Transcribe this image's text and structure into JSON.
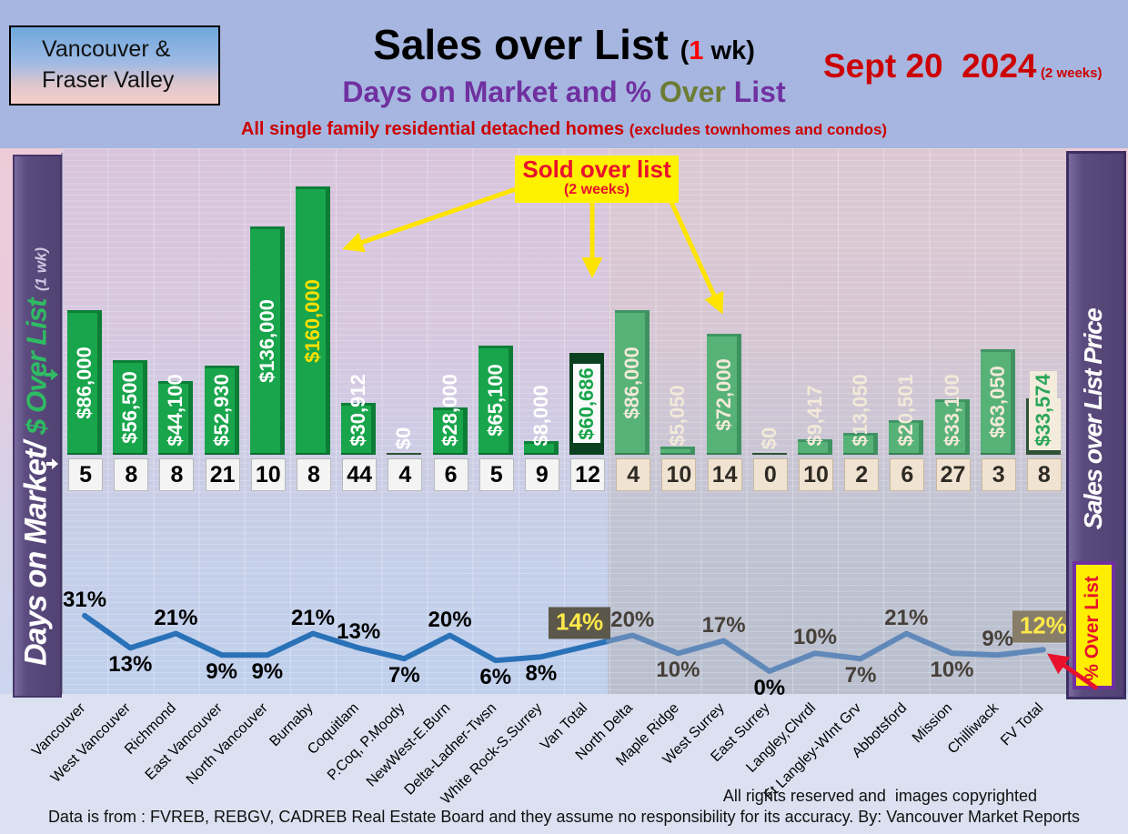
{
  "header": {
    "region_box": [
      "Vancouver &",
      "Fraser Valley"
    ],
    "title": "Sales over List",
    "title_paren_open": "(",
    "title_paren_num": "1",
    "title_paren_rest": " wk)",
    "subtitle_pre": "Days on Market and % ",
    "subtitle_over": "Over",
    "subtitle_post": " List",
    "condition": "All single family residential detached homes ",
    "condition_paren": "(excludes townhomes and condos)",
    "date": "Sept 20  2024",
    "date_paren": "(2 weeks)"
  },
  "left_axis": {
    "label_white": "Days on Market/",
    "label_green": "$ Over List",
    "label_paren": "(1 wk)"
  },
  "right_axis": {
    "label": "Sales over List Price",
    "pct_label": "% Over List"
  },
  "annotation": {
    "line1": "Sold over list",
    "line2": "(2 weeks)"
  },
  "footer": {
    "rights": "All rights reserved and  images copyrighted",
    "source": "Data is from : FVREB, REBGV, CADREB Real Estate Board and they assume no responsibility for its accuracy. By: Vancouver Market Reports"
  },
  "chart_data": {
    "type": "bar+line",
    "categories": [
      "Vancouver",
      "West Vancouver",
      "Richmond",
      "East Vancouver",
      "North Vancouver",
      "Burnaby",
      "Coquitlam",
      "P.Coq, P.Moody",
      "NewWest-E.Burn",
      "Delta-Ladner-Twsn",
      "White Rock-S.Surrey",
      "Van Total",
      "North Delta",
      "Maple Ridge",
      "West Surrey",
      "East Surrey",
      "Langley,Clvrdl",
      "Ft Langley-WInt Grv",
      "Abbotsford",
      "Mission",
      "Chilliwack",
      "FV Total"
    ],
    "series": [
      {
        "name": "$ Over List",
        "values": [
          86000,
          56500,
          44100,
          52930,
          136000,
          160000,
          30912,
          0,
          28000,
          65100,
          8000,
          60686,
          86000,
          5050,
          72000,
          0,
          9417,
          13050,
          20501,
          33100,
          63050,
          33574
        ],
        "labels": [
          "$86,000",
          "$56,500",
          "$44,100",
          "$52,930",
          "$136,000",
          "$160,000",
          "$30,912",
          "$0",
          "$28,000",
          "$65,100",
          "$8,000",
          "$60,686",
          "$86,000",
          "$5,050",
          "$72,000",
          "$0",
          "$9,417",
          "$13,050",
          "$20,501",
          "$33,100",
          "$63,050",
          "$33,574"
        ]
      },
      {
        "name": "Days on Market",
        "values": [
          5,
          8,
          8,
          21,
          10,
          8,
          44,
          4,
          6,
          5,
          9,
          12,
          4,
          10,
          14,
          0,
          10,
          2,
          6,
          27,
          3,
          8
        ]
      },
      {
        "name": "% Over List",
        "values": [
          31,
          13,
          21,
          9,
          9,
          21,
          13,
          7,
          20,
          6,
          8,
          14,
          20,
          10,
          17,
          0,
          10,
          7,
          21,
          10,
          9,
          12
        ]
      }
    ],
    "pct_side": [
      "a",
      "b",
      "a",
      "b",
      "b",
      "a",
      "a",
      "b",
      "a",
      "b",
      "b",
      "a",
      "a",
      "b",
      "a",
      "b",
      "a",
      "b",
      "a",
      "b",
      "a",
      "a"
    ],
    "van_count": 12,
    "ylim_bars": [
      0,
      160000
    ],
    "bar_label_colors": {
      "default_van": "#ffffff",
      "default_fv": "#f3e9d9",
      "burnaby_yellow": "#ffe000",
      "van_total_green": "#18a54b",
      "fv_total_green": "#2aa558"
    }
  }
}
